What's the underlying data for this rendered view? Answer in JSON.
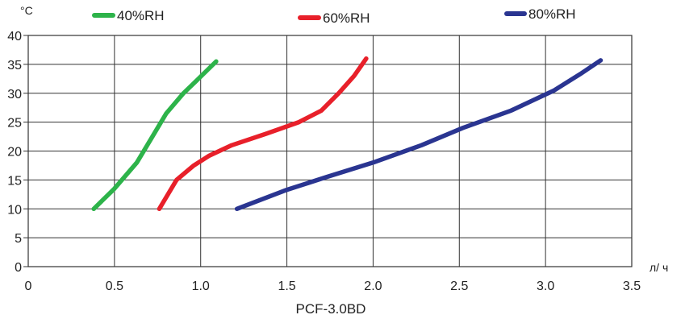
{
  "chart_data": {
    "type": "line",
    "caption": "PCF-3.0BD",
    "y_unit_label": "°C",
    "x_unit_label": "л/ ч",
    "xlim": [
      0,
      3.5
    ],
    "ylim": [
      0,
      40
    ],
    "x_ticks": [
      "0",
      "0.5",
      "1.0",
      "1.5",
      "2.0",
      "2.5",
      "3.0",
      "3.5"
    ],
    "x_tick_values": [
      0,
      0.5,
      1.0,
      1.5,
      2.0,
      2.5,
      3.0,
      3.5
    ],
    "y_ticks": [
      "0",
      "5",
      "10",
      "15",
      "20",
      "25",
      "30",
      "35",
      "40"
    ],
    "y_tick_values": [
      0,
      5,
      10,
      15,
      20,
      25,
      30,
      35,
      40
    ],
    "grid": true,
    "legend_position": "top",
    "series": [
      {
        "name": "40%RH",
        "color": "#2db34a",
        "points": [
          [
            0.38,
            10
          ],
          [
            0.5,
            13.5
          ],
          [
            0.63,
            18
          ],
          [
            0.72,
            22.5
          ],
          [
            0.8,
            26.5
          ],
          [
            0.9,
            30
          ],
          [
            0.97,
            32
          ],
          [
            1.09,
            35.5
          ]
        ]
      },
      {
        "name": "60%RH",
        "color": "#e8202a",
        "points": [
          [
            0.76,
            10
          ],
          [
            0.86,
            15
          ],
          [
            0.96,
            17.5
          ],
          [
            1.05,
            19.2
          ],
          [
            1.18,
            21
          ],
          [
            1.38,
            23
          ],
          [
            1.57,
            25
          ],
          [
            1.7,
            27
          ],
          [
            1.8,
            30
          ],
          [
            1.89,
            33
          ],
          [
            1.96,
            36
          ]
        ]
      },
      {
        "name": "80%RH",
        "color": "#2a3591",
        "points": [
          [
            1.21,
            10
          ],
          [
            1.5,
            13.3
          ],
          [
            1.73,
            15.5
          ],
          [
            2.0,
            18
          ],
          [
            2.28,
            21
          ],
          [
            2.52,
            24
          ],
          [
            2.8,
            27
          ],
          [
            3.05,
            30.5
          ],
          [
            3.2,
            33.3
          ],
          [
            3.32,
            35.7
          ]
        ]
      }
    ]
  }
}
